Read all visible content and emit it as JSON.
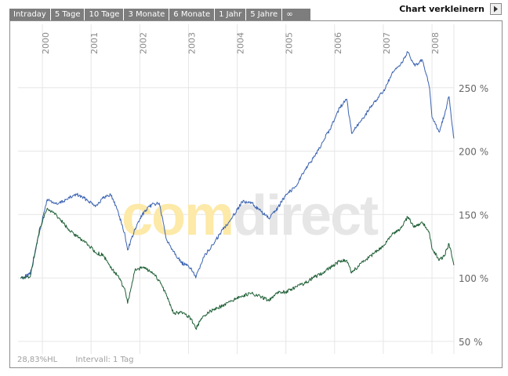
{
  "tabs": [
    "Intraday",
    "5 Tage",
    "10 Tage",
    "3 Monate",
    "6 Monate",
    "1 Jahr",
    "5 Jahre",
    "∞"
  ],
  "shrink": {
    "label": "Chart verkleinern",
    "icon": "play-right-icon"
  },
  "footer": {
    "hl": "28,83%HL",
    "interval": "Intervall: 1 Tag"
  },
  "watermark": {
    "part1": "com",
    "part2": "direct",
    "color1": "#fde9a8",
    "color2": "#e6e6e6"
  },
  "chart_data": {
    "type": "line",
    "x_unit": "year",
    "xlim": [
      1999.5,
      2008.45
    ],
    "ylim": [
      40,
      300
    ],
    "y_ticks": [
      50,
      100,
      150,
      200,
      250
    ],
    "y_tick_labels": [
      "50 %",
      "100 %",
      "150 %",
      "200 %",
      "250 %"
    ],
    "x_ticks": [
      2000,
      2001,
      2002,
      2003,
      2004,
      2005,
      2006,
      2007,
      2008
    ],
    "x_tick_labels": [
      "2000",
      "2001",
      "2002",
      "2003",
      "2004",
      "2005",
      "2006",
      "2007",
      "2008"
    ],
    "grid": true,
    "series": [
      {
        "name": "blue",
        "color": "#3a62b0",
        "points": [
          [
            1999.55,
            100
          ],
          [
            1999.75,
            103
          ],
          [
            1999.95,
            138
          ],
          [
            2000.1,
            162
          ],
          [
            2000.3,
            158
          ],
          [
            2000.5,
            162
          ],
          [
            2000.7,
            166
          ],
          [
            2000.9,
            162
          ],
          [
            2001.1,
            157
          ],
          [
            2001.25,
            163
          ],
          [
            2001.4,
            166
          ],
          [
            2001.55,
            153
          ],
          [
            2001.7,
            133
          ],
          [
            2001.75,
            122
          ],
          [
            2001.9,
            138
          ],
          [
            2002.05,
            150
          ],
          [
            2002.25,
            158
          ],
          [
            2002.4,
            159
          ],
          [
            2002.55,
            130
          ],
          [
            2002.7,
            121
          ],
          [
            2002.85,
            112
          ],
          [
            2003.05,
            108
          ],
          [
            2003.15,
            100
          ],
          [
            2003.3,
            116
          ],
          [
            2003.5,
            126
          ],
          [
            2003.7,
            138
          ],
          [
            2003.9,
            148
          ],
          [
            2004.1,
            160
          ],
          [
            2004.3,
            159
          ],
          [
            2004.5,
            152
          ],
          [
            2004.65,
            147
          ],
          [
            2004.8,
            153
          ],
          [
            2005.0,
            166
          ],
          [
            2005.2,
            172
          ],
          [
            2005.4,
            186
          ],
          [
            2005.6,
            196
          ],
          [
            2005.75,
            207
          ],
          [
            2005.9,
            217
          ],
          [
            2006.1,
            234
          ],
          [
            2006.25,
            241
          ],
          [
            2006.35,
            214
          ],
          [
            2006.55,
            224
          ],
          [
            2006.8,
            238
          ],
          [
            2007.0,
            247
          ],
          [
            2007.2,
            262
          ],
          [
            2007.35,
            268
          ],
          [
            2007.5,
            278
          ],
          [
            2007.65,
            267
          ],
          [
            2007.8,
            272
          ],
          [
            2007.95,
            250
          ],
          [
            2008.0,
            227
          ],
          [
            2008.15,
            215
          ],
          [
            2008.25,
            228
          ],
          [
            2008.35,
            243
          ],
          [
            2008.45,
            210
          ]
        ]
      },
      {
        "name": "green",
        "color": "#1f5f36",
        "points": [
          [
            1999.55,
            100
          ],
          [
            1999.75,
            101
          ],
          [
            1999.95,
            140
          ],
          [
            2000.1,
            155
          ],
          [
            2000.3,
            149
          ],
          [
            2000.5,
            140
          ],
          [
            2000.7,
            133
          ],
          [
            2000.9,
            128
          ],
          [
            2001.1,
            120
          ],
          [
            2001.25,
            118
          ],
          [
            2001.4,
            108
          ],
          [
            2001.55,
            102
          ],
          [
            2001.7,
            90
          ],
          [
            2001.75,
            80
          ],
          [
            2001.9,
            106
          ],
          [
            2002.05,
            108
          ],
          [
            2002.25,
            105
          ],
          [
            2002.4,
            98
          ],
          [
            2002.55,
            86
          ],
          [
            2002.7,
            72
          ],
          [
            2002.85,
            73
          ],
          [
            2003.05,
            68
          ],
          [
            2003.15,
            60
          ],
          [
            2003.3,
            70
          ],
          [
            2003.5,
            75
          ],
          [
            2003.7,
            78
          ],
          [
            2003.9,
            82
          ],
          [
            2004.1,
            86
          ],
          [
            2004.3,
            88
          ],
          [
            2004.5,
            85
          ],
          [
            2004.65,
            82
          ],
          [
            2004.8,
            88
          ],
          [
            2005.0,
            89
          ],
          [
            2005.2,
            93
          ],
          [
            2005.4,
            96
          ],
          [
            2005.6,
            101
          ],
          [
            2005.75,
            104
          ],
          [
            2005.9,
            108
          ],
          [
            2006.1,
            113
          ],
          [
            2006.25,
            114
          ],
          [
            2006.35,
            104
          ],
          [
            2006.55,
            112
          ],
          [
            2006.8,
            119
          ],
          [
            2007.0,
            125
          ],
          [
            2007.2,
            135
          ],
          [
            2007.35,
            139
          ],
          [
            2007.5,
            148
          ],
          [
            2007.65,
            140
          ],
          [
            2007.8,
            144
          ],
          [
            2007.95,
            135
          ],
          [
            2008.0,
            123
          ],
          [
            2008.15,
            114
          ],
          [
            2008.25,
            117
          ],
          [
            2008.35,
            127
          ],
          [
            2008.45,
            110
          ]
        ]
      }
    ]
  }
}
